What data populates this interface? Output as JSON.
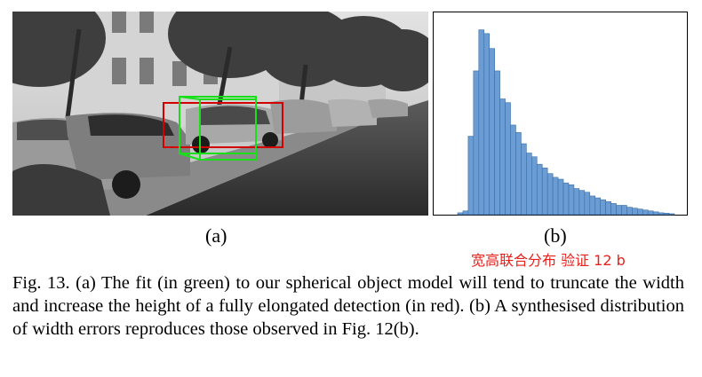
{
  "figure": {
    "label_a": "(a)",
    "label_b": "(b)",
    "caption": "Fig. 13.  (a) The fit (in green) to our spherical object model will tend to truncate the width and increase the height of a fully elongated detection (in red). (b) A synthesised distribution of width errors reproduces those observed in Fig. 12(b).",
    "watermark": "宽高联合分布  验证 12 b",
    "colors": {
      "detection_box": "#d40000",
      "fit_box": "#18e018",
      "histogram_fill": "#6b9dd4",
      "histogram_edge": "#3a6ea8",
      "watermark": "#e8211b"
    }
  },
  "chart_data": {
    "type": "bar",
    "title": "",
    "xlabel": "",
    "ylabel": "",
    "values": [
      0.01,
      0.02,
      0.42,
      0.77,
      0.99,
      0.97,
      0.89,
      0.77,
      0.62,
      0.6,
      0.48,
      0.44,
      0.38,
      0.33,
      0.31,
      0.27,
      0.25,
      0.22,
      0.2,
      0.19,
      0.17,
      0.16,
      0.14,
      0.13,
      0.12,
      0.1,
      0.09,
      0.08,
      0.07,
      0.06,
      0.05,
      0.05,
      0.04,
      0.035,
      0.03,
      0.025,
      0.02,
      0.015,
      0.01,
      0.008,
      0.005
    ],
    "ylim": [
      0,
      1.05
    ],
    "grid": false,
    "legend": "none"
  }
}
